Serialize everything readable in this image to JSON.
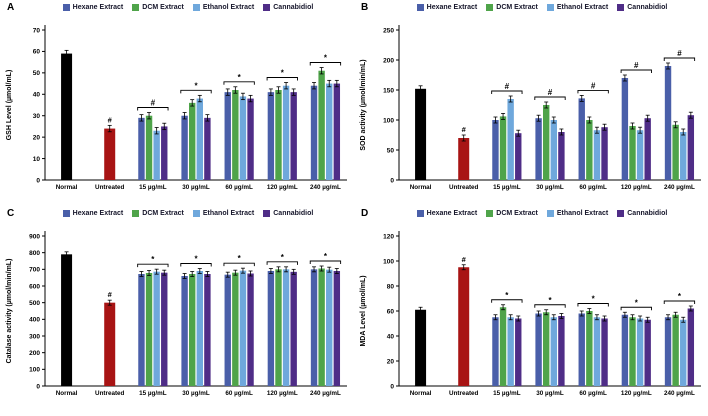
{
  "legend": [
    {
      "label": "Hexane Extract",
      "color": "#4a5fa9"
    },
    {
      "label": "DCM Extract",
      "color": "#4fa44a"
    },
    {
      "label": "Ethanol Extract",
      "color": "#6fa8dc"
    },
    {
      "label": "Cannabidiol",
      "color": "#4f2d87"
    }
  ],
  "colors": {
    "normal": "#000000",
    "untreated": "#a81414",
    "axis": "#000000"
  },
  "chart_data": [
    {
      "type": "bar",
      "panel": "A",
      "ylabel": "GSH Level (µmol/mL)",
      "ylim": [
        0,
        70
      ],
      "ystep": 10,
      "err": 1.5,
      "legend_position": "top",
      "grid": false,
      "singles": [
        {
          "label": "Normal",
          "value": 59,
          "color": "#000000",
          "annotation": ""
        },
        {
          "label": "Untreated",
          "value": 24,
          "color": "#a81414",
          "annotation": "#"
        }
      ],
      "groups": [
        "15 µg/mL",
        "30 µg/mL",
        "60 µg/mL",
        "120 µg/mL",
        "240 µg/mL"
      ],
      "series": [
        {
          "name": "Hexane Extract",
          "values": [
            29,
            30,
            41,
            41,
            44
          ]
        },
        {
          "name": "DCM Extract",
          "values": [
            30,
            36,
            42,
            42,
            51
          ]
        },
        {
          "name": "Ethanol Extract",
          "values": [
            23,
            38,
            39,
            44,
            45
          ]
        },
        {
          "name": "Cannabidiol",
          "values": [
            25,
            29,
            38,
            41,
            45
          ]
        }
      ],
      "group_annotations": [
        "#",
        "*",
        "*",
        "*",
        "*"
      ]
    },
    {
      "type": "bar",
      "panel": "B",
      "ylabel": "SOD activity (µmol/min/mL)",
      "ylim": [
        0,
        250
      ],
      "ystep": 50,
      "err": 5,
      "legend_position": "top",
      "grid": false,
      "singles": [
        {
          "label": "Normal",
          "value": 152,
          "color": "#000000",
          "annotation": ""
        },
        {
          "label": "Untreated",
          "value": 70,
          "color": "#a81414",
          "annotation": "#"
        }
      ],
      "groups": [
        "15 µg/mL",
        "30 µg/mL",
        "60 µg/mL",
        "120 µg/mL",
        "240 µg/mL"
      ],
      "series": [
        {
          "name": "Hexane Extract",
          "values": [
            100,
            103,
            136,
            170,
            190
          ]
        },
        {
          "name": "DCM Extract",
          "values": [
            106,
            125,
            100,
            90,
            92
          ]
        },
        {
          "name": "Ethanol Extract",
          "values": [
            135,
            100,
            83,
            83,
            80
          ]
        },
        {
          "name": "Cannabidiol",
          "values": [
            78,
            80,
            88,
            103,
            108
          ]
        }
      ],
      "group_annotations": [
        "#",
        "#",
        "#",
        "#",
        "#"
      ]
    },
    {
      "type": "bar",
      "panel": "C",
      "ylabel": "Catalase activity (µmol/min/mL)",
      "ylim": [
        0,
        900
      ],
      "ystep": 100,
      "err": 15,
      "legend_position": "top",
      "grid": false,
      "singles": [
        {
          "label": "Normal",
          "value": 790,
          "color": "#000000",
          "annotation": ""
        },
        {
          "label": "Untreated",
          "value": 500,
          "color": "#a81414",
          "annotation": "#"
        }
      ],
      "groups": [
        "15 µg/mL",
        "30 µg/mL",
        "60 µg/mL",
        "120 µg/mL",
        "240 µg/mL"
      ],
      "series": [
        {
          "name": "Hexane Extract",
          "values": [
            672,
            660,
            668,
            690,
            700
          ]
        },
        {
          "name": "DCM Extract",
          "values": [
            678,
            672,
            680,
            700,
            705
          ]
        },
        {
          "name": "Ethanol Extract",
          "values": [
            686,
            690,
            692,
            700,
            698
          ]
        },
        {
          "name": "Cannabidiol",
          "values": [
            680,
            672,
            675,
            685,
            690
          ]
        }
      ],
      "group_annotations": [
        "*",
        "*",
        "*",
        "*",
        "*"
      ]
    },
    {
      "type": "bar",
      "panel": "D",
      "ylabel": "MDA Level (µmol/mL)",
      "ylim": [
        0,
        120
      ],
      "ystep": 20,
      "err": 2,
      "legend_position": "top",
      "grid": false,
      "singles": [
        {
          "label": "Normal",
          "value": 61,
          "color": "#000000",
          "annotation": ""
        },
        {
          "label": "Untreated",
          "value": 95,
          "color": "#a81414",
          "annotation": "#"
        }
      ],
      "groups": [
        "15 µg/mL",
        "30 µg/mL",
        "60 µg/mL",
        "120 µg/mL",
        "240 µg/mL"
      ],
      "series": [
        {
          "name": "Hexane Extract",
          "values": [
            55,
            58,
            58,
            57,
            55
          ]
        },
        {
          "name": "DCM Extract",
          "values": [
            63,
            59,
            60,
            55,
            57
          ]
        },
        {
          "name": "Ethanol Extract",
          "values": [
            55,
            55,
            55,
            54,
            53
          ]
        },
        {
          "name": "Cannabidiol",
          "values": [
            54,
            56,
            54,
            53,
            62
          ]
        }
      ],
      "group_annotations": [
        "*",
        "*",
        "*",
        "*",
        "*"
      ]
    }
  ]
}
